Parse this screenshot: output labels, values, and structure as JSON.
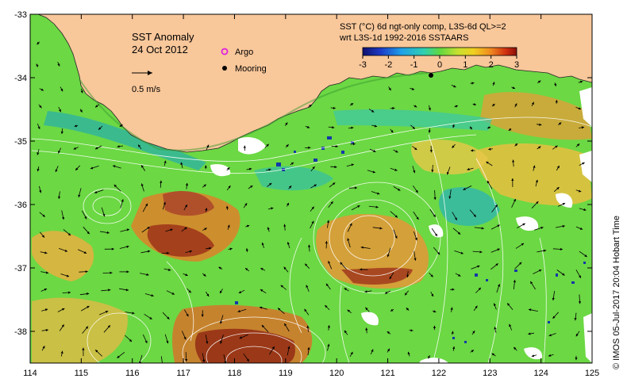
{
  "map": {
    "title_line1": "SST Anomaly",
    "title_line2": "24 Oct 2012",
    "scale_label": "0.5 m/s",
    "legend": {
      "argo": "Argo",
      "mooring": "Mooring"
    },
    "colorbar": {
      "title_line1": "SST (°C) 6d ngt-only comp, L3S-6d QL>=2",
      "title_line2": "wrt L3S-1d 1992-2016 SSTAARS",
      "ticks": [
        "-3",
        "-2",
        "-1",
        "0",
        "1",
        "2",
        "3"
      ],
      "range": [
        -3,
        3
      ]
    },
    "credit": "© IMOS 05-Jul-2017 20:04 Hobart Time",
    "x_ticks": [
      "114",
      "115",
      "116",
      "117",
      "118",
      "119",
      "120",
      "121",
      "122",
      "123",
      "124",
      "125"
    ],
    "y_ticks": [
      "-33",
      "-34",
      "-35",
      "-36",
      "-37",
      "-38"
    ],
    "x_range": [
      114,
      125
    ],
    "y_range": [
      -38.5,
      -33
    ],
    "colors": {
      "land": "#f8c79a",
      "ocean_base": "#6cd844",
      "warm": "#e8a23c",
      "hot": "#a4401c",
      "cool": "#2fb29a",
      "cold": "#1438a8",
      "white_contour": "#ffffff"
    }
  }
}
